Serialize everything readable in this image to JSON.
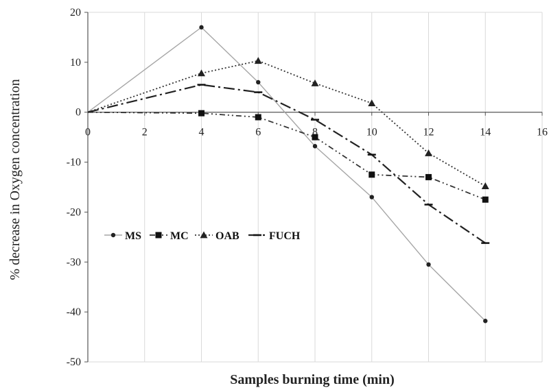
{
  "chart_data": {
    "type": "line",
    "xlabel": "Samples burning time (min)",
    "ylabel": "% decrease in Oxygen concentration",
    "xlim": [
      0,
      16
    ],
    "ylim": [
      -50,
      20
    ],
    "xticks": [
      "0",
      "2",
      "4",
      "6",
      "8",
      "10",
      "12",
      "14",
      "16"
    ],
    "yticks": [
      "20",
      "10",
      "0",
      "-10",
      "-20",
      "-30",
      "-40",
      "-50"
    ],
    "grid": "vertical",
    "legend": "middle-left",
    "x": [
      0,
      4,
      6,
      8,
      10,
      12,
      14
    ],
    "series": [
      {
        "name": "MS",
        "marker": "circle",
        "dash": "solid",
        "color": "#a6a6a6",
        "values": [
          0,
          17,
          6,
          -6.8,
          -17,
          -30.5,
          -41.8
        ]
      },
      {
        "name": "MC",
        "marker": "square",
        "dash": "dash-dot-dot",
        "color": "#333333",
        "values": [
          0,
          -0.2,
          -1,
          -5,
          -12.5,
          -13,
          -17.5
        ]
      },
      {
        "name": "OAB",
        "marker": "triangle",
        "dash": "dotted",
        "color": "#333333",
        "values": [
          0,
          7.8,
          10.3,
          5.8,
          1.8,
          -8.2,
          -14.8
        ]
      },
      {
        "name": "FUCH",
        "marker": "dash",
        "dash": "long-dash-dot",
        "color": "#222222",
        "values": [
          0,
          5.5,
          4,
          -1.5,
          -8.5,
          -18.5,
          -26.2
        ]
      }
    ]
  }
}
